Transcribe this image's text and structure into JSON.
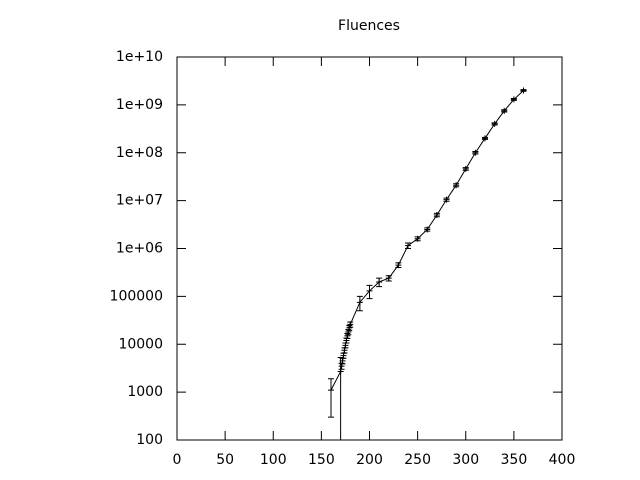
{
  "chart_data": {
    "type": "line",
    "title": "Fluences",
    "log_y": true,
    "color": "#000000",
    "x": [
      160,
      170,
      171,
      172,
      173,
      174,
      175,
      176,
      177,
      178,
      179,
      180,
      190,
      200,
      210,
      220,
      230,
      240,
      250,
      260,
      270,
      280,
      290,
      300,
      310,
      320,
      330,
      340,
      350,
      360
    ],
    "values": [
      1100,
      2700,
      3500,
      4500,
      5800,
      7500,
      9500,
      12000,
      15000,
      18000,
      22000,
      26000,
      75000,
      130000,
      200000,
      240000,
      450000,
      1150000,
      1600000,
      2500000,
      5000000,
      10500000,
      21000000,
      46000000,
      100000000,
      200000000,
      400000000,
      750000000,
      1300000000,
      2000000000
    ],
    "errors": [
      800,
      2600,
      500,
      600,
      700,
      900,
      1100,
      1400,
      1800,
      2200,
      2700,
      3200,
      25000,
      40000,
      40000,
      30000,
      50000,
      150000,
      150000,
      200000,
      400000,
      800000,
      1500000,
      3000000,
      6000000,
      10000000,
      20000000,
      40000000,
      60000000,
      80000000
    ],
    "xlim": [
      0,
      400
    ],
    "xticks": [
      0,
      50,
      100,
      150,
      200,
      250,
      300,
      350,
      400
    ],
    "ylim": [
      100,
      10000000000
    ],
    "yticks": [
      100,
      1000,
      10000,
      100000,
      {
        "value": 1000000,
        "label": "1e+06"
      },
      {
        "value": 10000000,
        "label": "1e+07"
      },
      {
        "value": 100000000,
        "label": "1e+08"
      },
      {
        "value": 1000000000,
        "label": "1e+09"
      },
      {
        "value": 10000000000,
        "label": "1e+10"
      }
    ]
  }
}
